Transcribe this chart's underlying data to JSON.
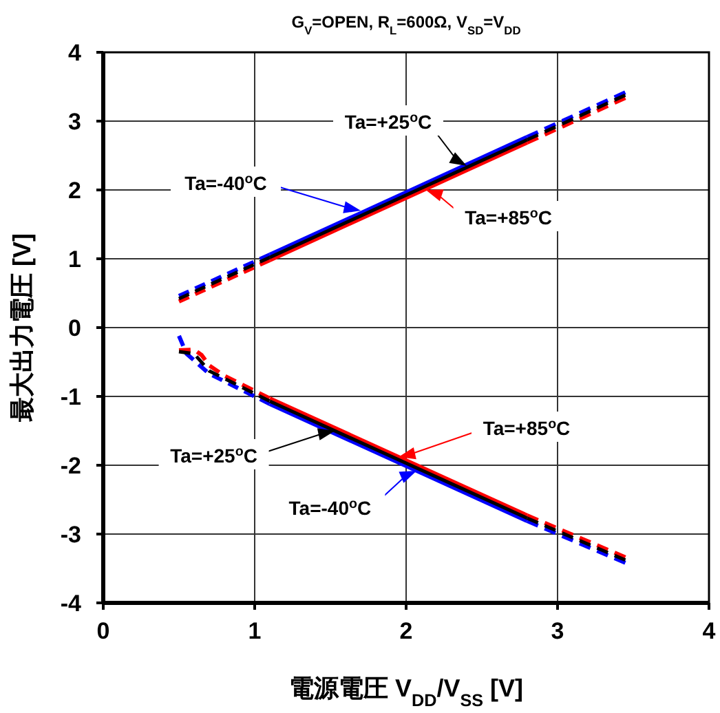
{
  "chart_data": {
    "type": "line",
    "title": "G$_{V}$=OPEN, R$_{L}$=600Ω, V$_{SD}$=V$_{DD}$",
    "xlabel": "電源電圧 V$_{DD}$/V$_{SS}$ [V]",
    "ylabel": "最大出力電圧 [V]",
    "xlim": [
      0,
      4
    ],
    "xticks": [
      0,
      1,
      2,
      3,
      4
    ],
    "ylim": [
      -4,
      4
    ],
    "yticks": [
      -4,
      -3,
      -2,
      -1,
      0,
      1,
      2,
      3,
      4
    ],
    "grid": true,
    "marker": "none",
    "series": [
      {
        "color": "#0000ff",
        "line_style": "dashed",
        "x": [
          0.5,
          1.1
        ],
        "values": [
          0.46,
          1.06
        ]
      },
      {
        "color": "#0000ff",
        "line_style": "solid",
        "x": [
          1.1,
          2.8
        ],
        "values": [
          1.06,
          2.77
        ]
      },
      {
        "color": "#0000ff",
        "line_style": "dashed",
        "x": [
          2.8,
          3.45
        ],
        "values": [
          2.77,
          3.42
        ]
      },
      {
        "color": "#0000ff",
        "line_style": "dashed",
        "x": [
          0.5,
          0.55,
          0.7,
          1.1
        ],
        "values": [
          -0.12,
          -0.38,
          -0.67,
          -1.11
        ]
      },
      {
        "color": "#0000ff",
        "line_style": "solid",
        "x": [
          1.1,
          2.8
        ],
        "values": [
          -1.11,
          -2.81
        ]
      },
      {
        "color": "#0000ff",
        "line_style": "dashed",
        "x": [
          2.8,
          3.45
        ],
        "values": [
          -2.81,
          -3.42
        ]
      },
      {
        "color": "#ff0000",
        "line_style": "dashed",
        "x": [
          0.5,
          1.1
        ],
        "values": [
          0.38,
          0.98
        ]
      },
      {
        "color": "#ff0000",
        "line_style": "solid",
        "x": [
          1.1,
          2.8
        ],
        "values": [
          0.98,
          2.69
        ]
      },
      {
        "color": "#ff0000",
        "line_style": "dashed",
        "x": [
          2.8,
          3.45
        ],
        "values": [
          2.69,
          3.34
        ]
      },
      {
        "color": "#ff0000",
        "line_style": "dashed",
        "x": [
          0.5,
          0.6,
          0.65,
          0.7,
          0.8,
          1.1
        ],
        "values": [
          -0.33,
          -0.32,
          -0.4,
          -0.55,
          -0.7,
          -1.03
        ]
      },
      {
        "color": "#ff0000",
        "line_style": "solid",
        "x": [
          1.1,
          2.8
        ],
        "values": [
          -1.03,
          -2.73
        ]
      },
      {
        "color": "#ff0000",
        "line_style": "dashed",
        "x": [
          2.8,
          3.45
        ],
        "values": [
          -2.73,
          -3.34
        ]
      },
      {
        "color": "#000000",
        "line_style": "dashed",
        "x": [
          0.5,
          1.1
        ],
        "values": [
          0.42,
          1.02
        ]
      },
      {
        "color": "#000000",
        "line_style": "solid",
        "x": [
          1.1,
          2.8
        ],
        "values": [
          1.02,
          2.73
        ]
      },
      {
        "color": "#000000",
        "line_style": "dashed",
        "x": [
          2.8,
          3.45
        ],
        "values": [
          2.73,
          3.38
        ]
      },
      {
        "color": "#000000",
        "line_style": "dashed",
        "x": [
          0.5,
          0.6,
          0.7,
          1.1
        ],
        "values": [
          -0.35,
          -0.38,
          -0.63,
          -1.07
        ]
      },
      {
        "color": "#000000",
        "line_style": "solid",
        "x": [
          1.1,
          2.8
        ],
        "values": [
          -1.07,
          -2.77
        ]
      },
      {
        "color": "#000000",
        "line_style": "dashed",
        "x": [
          2.8,
          3.45
        ],
        "values": [
          -2.77,
          -3.38
        ]
      }
    ],
    "annotations": [
      {
        "text": "Ta=+25$^{o}$C",
        "x": 2.4,
        "y": 2.35
      },
      {
        "text": "Ta=-40$^{o}$C",
        "x": 1.7,
        "y": 1.7
      },
      {
        "text": "Ta=+85$^{o}$C",
        "x": 2.13,
        "y": 2.0
      },
      {
        "text": "Ta=+85$^{o}$C",
        "x": 1.95,
        "y": -1.88
      },
      {
        "text": "Ta=+25$^{o}$C",
        "x": 1.53,
        "y": -1.5
      },
      {
        "text": "Ta=-40$^{o}$C",
        "x": 2.07,
        "y": -2.08
      }
    ]
  }
}
